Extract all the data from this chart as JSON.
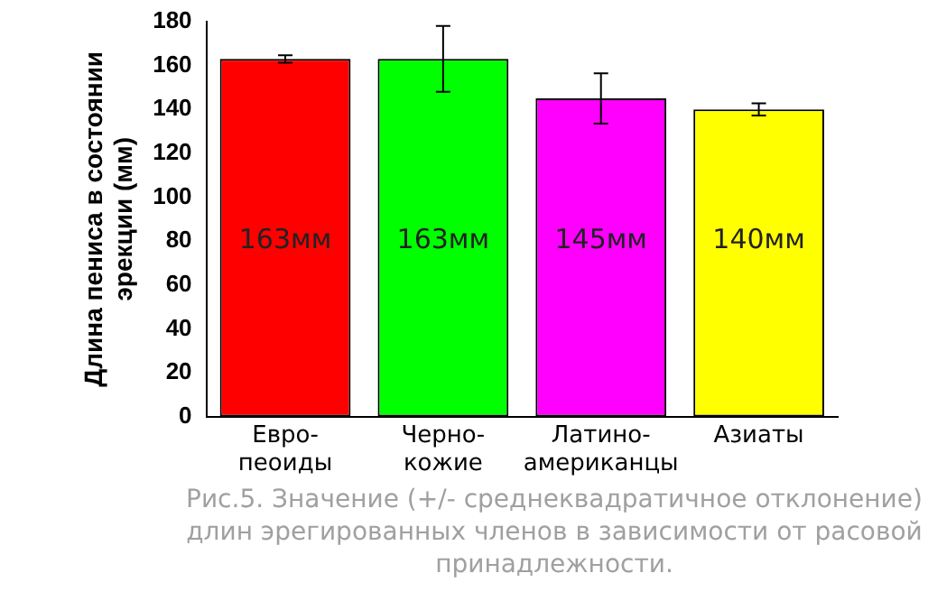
{
  "chart_data": {
    "type": "bar",
    "categories": [
      "Евро-\nпеоиды",
      "Черно-\nкожие",
      "Латино-\nамериканцы",
      "Азиаты"
    ],
    "values": [
      163,
      163,
      145,
      140
    ],
    "colors": [
      "#ff0000",
      "#00ff00",
      "#ff00ff",
      "#ffff00"
    ],
    "errors": [
      1.7,
      15,
      11.5,
      2.8
    ],
    "value_labels": [
      "163мм",
      "163мм",
      "145мм",
      "140мм"
    ],
    "ylabel": "Длина пениса в состоянии\nэрекции (мм)",
    "ylim": [
      0,
      180
    ],
    "yticks": [
      0,
      20,
      40,
      60,
      80,
      100,
      120,
      140,
      160,
      180
    ],
    "grid": false,
    "legend": false,
    "annotations": [
      "Рис.5. Значение (+/- среднеквадратичное отклонение) длин эрегированных членов в зависимости от расовой принадлежности."
    ]
  }
}
